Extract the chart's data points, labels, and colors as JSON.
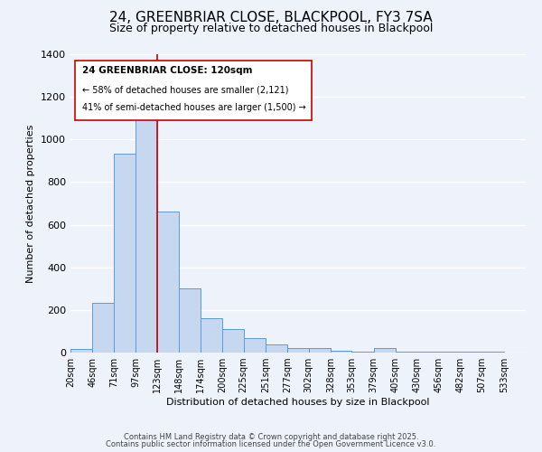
{
  "title": "24, GREENBRIAR CLOSE, BLACKPOOL, FY3 7SA",
  "subtitle": "Size of property relative to detached houses in Blackpool",
  "xlabel": "Distribution of detached houses by size in Blackpool",
  "ylabel": "Number of detached properties",
  "bar_left_edges": [
    20,
    46,
    71,
    97,
    123,
    148,
    174,
    200,
    225,
    251,
    277,
    302,
    328,
    353,
    379,
    405,
    430,
    456,
    482,
    507
  ],
  "bar_widths": [
    26,
    25,
    26,
    26,
    25,
    26,
    26,
    25,
    26,
    26,
    25,
    26,
    25,
    26,
    26,
    25,
    26,
    26,
    25,
    26
  ],
  "bar_heights": [
    15,
    235,
    935,
    1115,
    660,
    300,
    160,
    110,
    70,
    40,
    20,
    20,
    10,
    5,
    20,
    5,
    5,
    5,
    5,
    5
  ],
  "bar_color": "#c5d8f0",
  "bar_edge_color": "#5b9bd5",
  "x_tick_labels": [
    "20sqm",
    "46sqm",
    "71sqm",
    "97sqm",
    "123sqm",
    "148sqm",
    "174sqm",
    "200sqm",
    "225sqm",
    "251sqm",
    "277sqm",
    "302sqm",
    "328sqm",
    "353sqm",
    "379sqm",
    "405sqm",
    "430sqm",
    "456sqm",
    "482sqm",
    "507sqm",
    "533sqm"
  ],
  "x_tick_positions": [
    20,
    46,
    71,
    97,
    123,
    148,
    174,
    200,
    225,
    251,
    277,
    302,
    328,
    353,
    379,
    405,
    430,
    456,
    482,
    507,
    533
  ],
  "ylim": [
    0,
    1400
  ],
  "yticks": [
    0,
    200,
    400,
    600,
    800,
    1000,
    1200,
    1400
  ],
  "vline_x": 123,
  "vline_color": "#cc0000",
  "annotation_title": "24 GREENBRIAR CLOSE: 120sqm",
  "annotation_line2": "← 58% of detached houses are smaller (2,121)",
  "annotation_line3": "41% of semi-detached houses are larger (1,500) →",
  "footer1": "Contains HM Land Registry data © Crown copyright and database right 2025.",
  "footer2": "Contains public sector information licensed under the Open Government Licence v3.0.",
  "background_color": "#eef2fa",
  "grid_color": "#ffffff",
  "title_fontsize": 11,
  "subtitle_fontsize": 9,
  "xlabel_fontsize": 8,
  "ylabel_fontsize": 8
}
